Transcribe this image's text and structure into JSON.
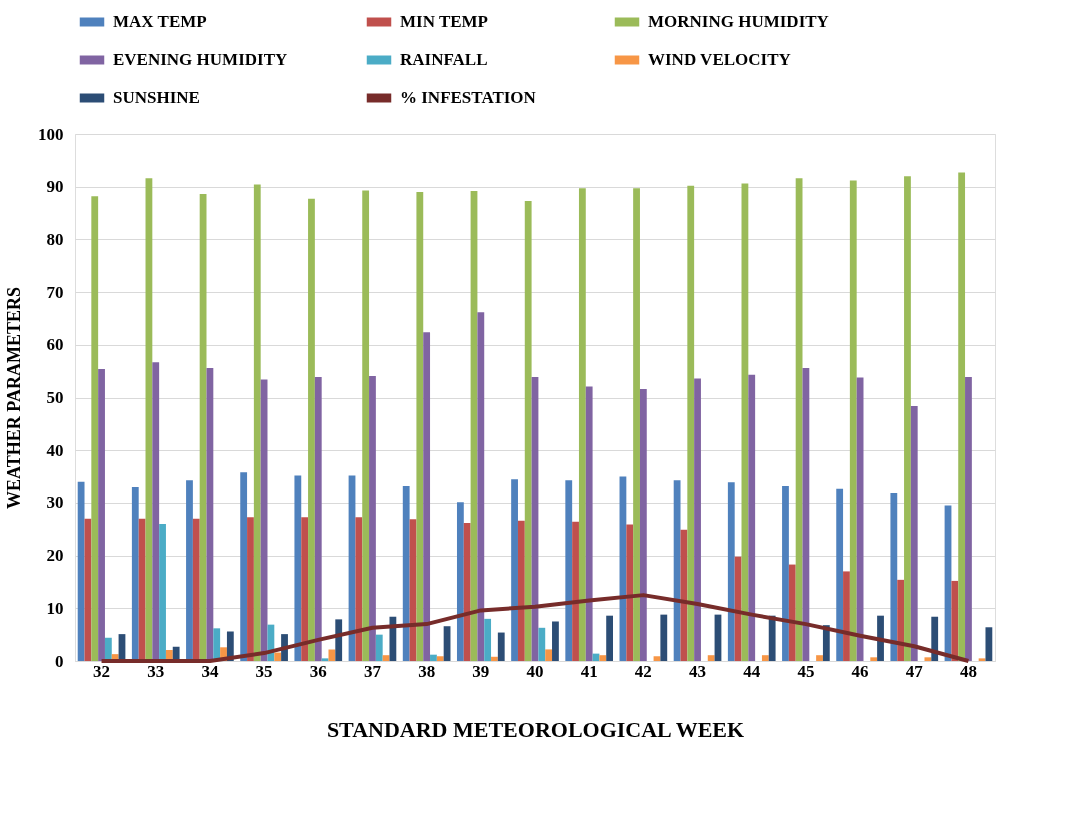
{
  "chart_data": {
    "type": "bar",
    "xlabel": "STANDARD METEOROLOGICAL WEEK",
    "ylabel": "WEATHER PARAMETERS",
    "categories": [
      "32",
      "33",
      "34",
      "35",
      "36",
      "37",
      "38",
      "39",
      "40",
      "41",
      "42",
      "43",
      "44",
      "45",
      "46",
      "47",
      "48"
    ],
    "ylim": [
      0,
      100
    ],
    "yticks": [
      0,
      10,
      20,
      30,
      40,
      50,
      60,
      70,
      80,
      90,
      100
    ],
    "grid": "y",
    "legend": "top",
    "series": [
      {
        "name": "MAX TEMP",
        "color": "#4f81bd",
        "values": [
          34,
          33,
          34.3,
          35.8,
          35.2,
          35.2,
          33.2,
          30.1,
          34.5,
          34.3,
          35,
          34.3,
          33.9,
          33.2,
          32.7,
          31.9,
          29.5
        ]
      },
      {
        "name": "MIN TEMP",
        "color": "#c0504d",
        "values": [
          27,
          27,
          27,
          27.3,
          27.3,
          27.3,
          26.9,
          26.2,
          26.6,
          26.4,
          25.9,
          24.9,
          19.8,
          18.3,
          17,
          15.4,
          15.2
        ]
      },
      {
        "name": "MORNING HUMIDITY",
        "color": "#9bbb59",
        "values": [
          88.2,
          91.6,
          88.6,
          90.4,
          87.7,
          89.3,
          89,
          89.2,
          87.3,
          89.7,
          89.7,
          90.2,
          90.6,
          91.6,
          91.2,
          92,
          92.7
        ]
      },
      {
        "name": "EVENING HUMIDITY",
        "color": "#8064a2",
        "values": [
          55.4,
          56.7,
          55.6,
          53.4,
          53.9,
          54.1,
          62.4,
          66.2,
          53.9,
          52.1,
          51.6,
          53.6,
          54.3,
          55.6,
          53.8,
          48.4,
          53.9
        ]
      },
      {
        "name": "RAINFALL",
        "color": "#4bacc6",
        "values": [
          4.4,
          26,
          6.2,
          6.9,
          0.5,
          5,
          1.2,
          8,
          6.3,
          1.4,
          0,
          0,
          0,
          0,
          0,
          0,
          0
        ]
      },
      {
        "name": "WIND VELOCITY",
        "color": "#f79646",
        "values": [
          1.3,
          2.1,
          2.6,
          1.6,
          2.2,
          1.1,
          0.9,
          0.8,
          2.2,
          1.1,
          0.9,
          1.1,
          1.1,
          1.1,
          0.7,
          0.7,
          0.5
        ]
      },
      {
        "name": "SUNSHINE",
        "color": "#2c4d75",
        "values": [
          5.1,
          2.7,
          5.6,
          5.1,
          7.9,
          8.4,
          6.6,
          5.4,
          7.5,
          8.6,
          8.8,
          8.8,
          8.6,
          6.8,
          8.6,
          8.4,
          6.4
        ]
      },
      {
        "name": "% INFESTATION",
        "color": "#772c2a",
        "type": "line",
        "values": [
          0,
          0,
          0,
          1.5,
          4,
          6.3,
          7,
          9.6,
          10.3,
          11.5,
          12.5,
          10.8,
          8.8,
          7,
          4.8,
          2.8,
          0
        ]
      }
    ]
  }
}
